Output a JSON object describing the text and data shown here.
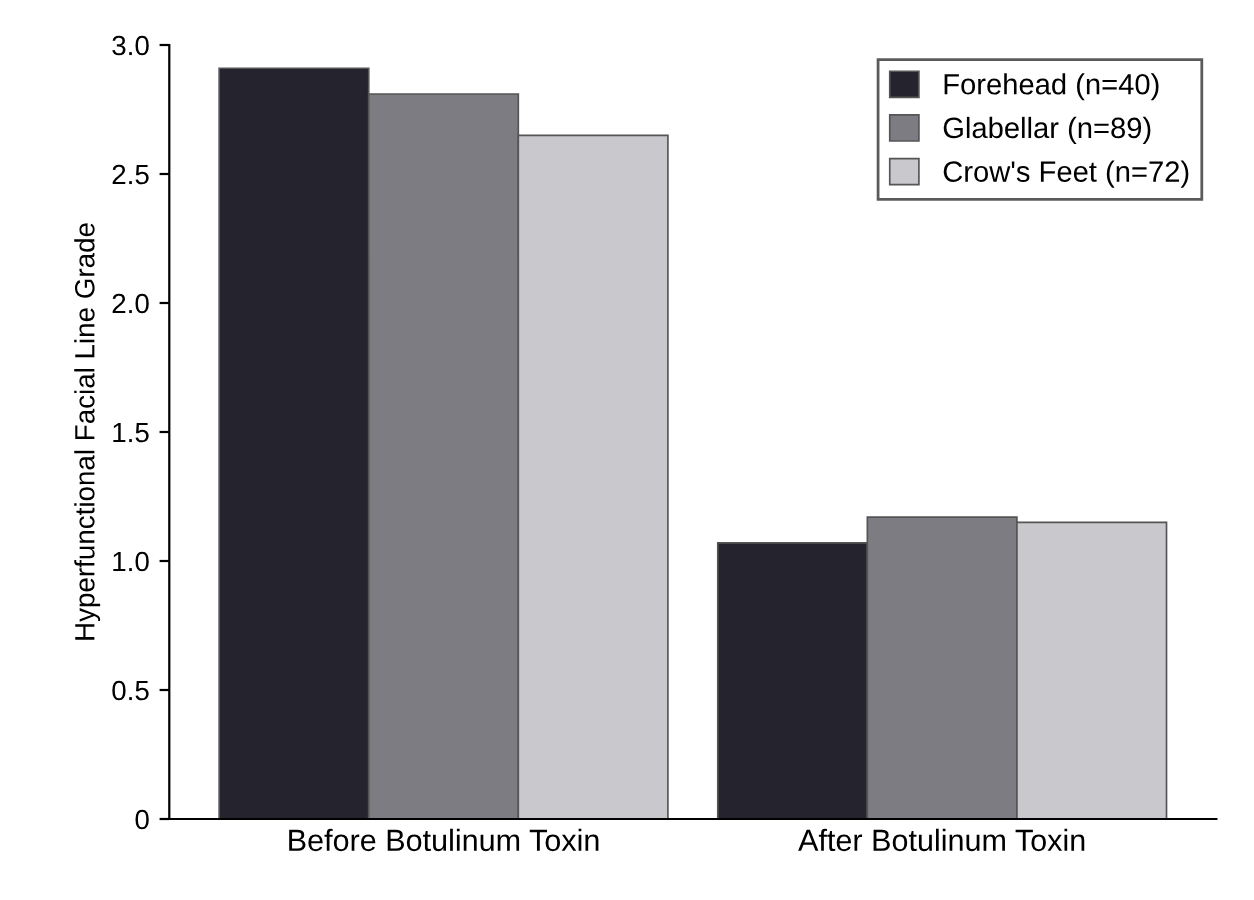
{
  "chart_data": {
    "type": "bar",
    "ylabel": "Hyperfunctional Facial Line Grade",
    "categories": [
      "Before Botulinum Toxin",
      "After Botulinum Toxin"
    ],
    "series": [
      {
        "name": "Forehead (n=40)",
        "color": "#25242e",
        "values": [
          2.91,
          1.07
        ]
      },
      {
        "name": "Glabellar (n=89)",
        "color": "#7c7c82",
        "values": [
          2.81,
          1.17
        ]
      },
      {
        "name": "Crow's Feet (n=72)",
        "color": "#c9c9cd",
        "values": [
          2.65,
          1.15
        ]
      }
    ],
    "ylim": [
      0,
      3.0
    ],
    "yticks": [
      {
        "value": 0,
        "label": "0"
      },
      0.5,
      {
        "value": 1,
        "label": "1.0"
      },
      1.5,
      {
        "value": 2,
        "label": "2.0"
      },
      2.5,
      {
        "value": 3,
        "label": "3.0"
      }
    ],
    "grid": false,
    "legend": "top right"
  }
}
